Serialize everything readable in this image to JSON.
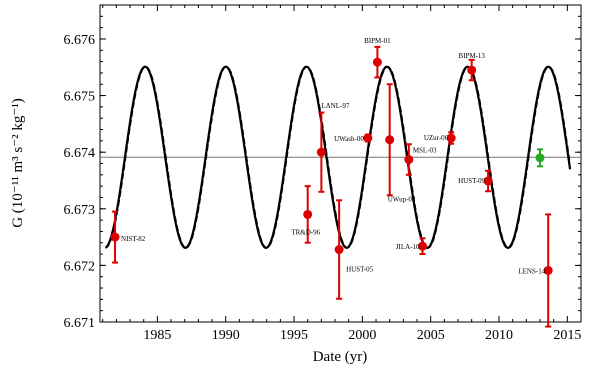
{
  "chart_data": {
    "type": "scatter",
    "xlabel": "Date  (yr)",
    "ylabel": "G  (10⁻¹¹ m³ s⁻² kg⁻¹)",
    "xlim": [
      1980.8,
      2016.0
    ],
    "ylim": [
      6.671,
      6.6766
    ],
    "x_ticks": [
      1985,
      1990,
      1995,
      2000,
      2005,
      2010,
      2015
    ],
    "x_tick_labels": [
      "1985",
      "1990",
      "1995",
      "2000",
      "2005",
      "2010",
      "2015"
    ],
    "y_ticks": [
      6.671,
      6.672,
      6.673,
      6.674,
      6.675,
      6.676
    ],
    "y_tick_labels": [
      "6.671",
      "6.672",
      "6.673",
      "6.674",
      "6.675",
      "6.676"
    ],
    "grid": false,
    "reference_line": {
      "y": 6.67391
    },
    "fit_curve": {
      "mean": 6.67391,
      "amplitude": 0.0016,
      "period_years": 5.9,
      "peak_year": 1984.1,
      "x_range": [
        1981.2,
        2015.2
      ]
    },
    "series": [
      {
        "color": "#dd0000",
        "points": [
          {
            "label": "NIST-82",
            "x": 1981.9,
            "y": 6.6725,
            "err": 0.00045
          },
          {
            "label": "TR&D-96",
            "x": 1996.0,
            "y": 6.6729,
            "err": 0.0005
          },
          {
            "label": "LANL-97",
            "x": 1997.0,
            "y": 6.674,
            "err": 0.0007
          },
          {
            "label": "HUST-05",
            "x": 1998.3,
            "y": 6.67228,
            "err": 0.00087
          },
          {
            "label": "UWash-00",
            "x": 2000.4,
            "y": 6.67425,
            "err": 6e-05
          },
          {
            "label": "BIPM-01",
            "x": 2001.1,
            "y": 6.67559,
            "err": 0.00027
          },
          {
            "label": "UWup-02",
            "x": 2002.0,
            "y": 6.67422,
            "err": 0.00098
          },
          {
            "label": "MSL-03",
            "x": 2003.4,
            "y": 6.67387,
            "err": 0.00027
          },
          {
            "label": "JILA-10",
            "x": 2004.4,
            "y": 6.67234,
            "err": 0.00014
          },
          {
            "label": "UZur-06",
            "x": 2006.5,
            "y": 6.67425,
            "err": 0.0001
          },
          {
            "label": "BIPM-13",
            "x": 2008.0,
            "y": 6.67545,
            "err": 0.00018
          },
          {
            "label": "HUST-09",
            "x": 2009.2,
            "y": 6.67349,
            "err": 0.00018
          },
          {
            "label": "LENS-14",
            "x": 2013.6,
            "y": 6.67191,
            "err": 0.00099
          }
        ]
      },
      {
        "color": "#22aa22",
        "points": [
          {
            "x": 2013.0,
            "y": 6.6739,
            "err": 0.00015
          }
        ]
      }
    ]
  }
}
